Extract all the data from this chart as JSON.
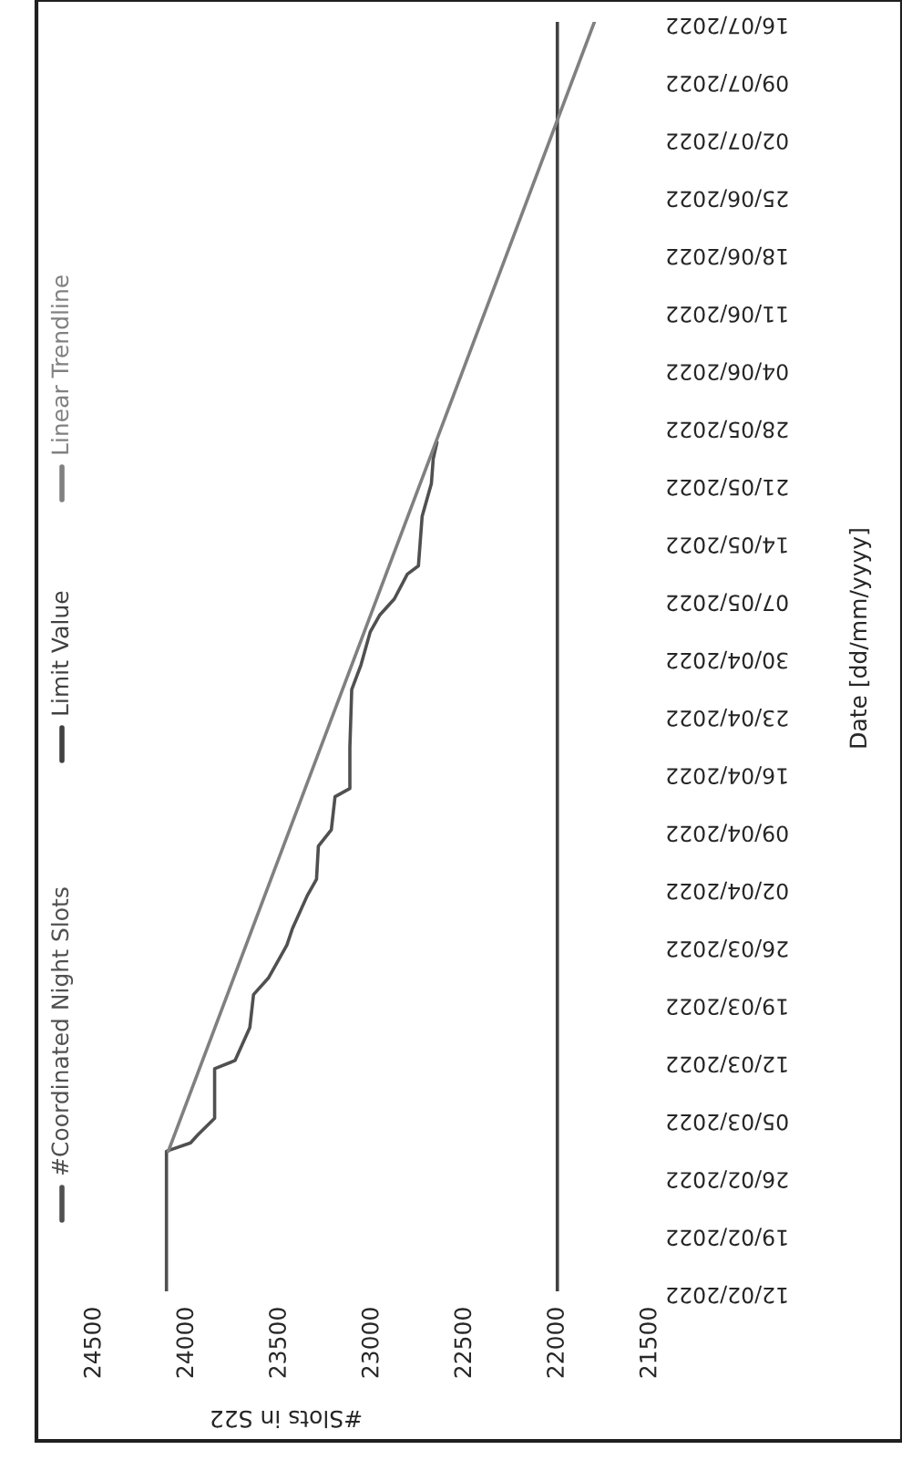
{
  "chart_data": {
    "type": "line",
    "orientation": "horizontal",
    "xlabel": "#Slots in S22",
    "ylabel": "Date [dd/mm/yyyy]",
    "xlim": [
      24500,
      21500
    ],
    "xticks": [
      24500,
      24000,
      23500,
      23000,
      22500,
      22000,
      21500
    ],
    "ylim": [
      "2022-02-12",
      "2022-07-16"
    ],
    "yticks": [
      {
        "value": "2022-02-12",
        "label": "12/02/2022"
      },
      {
        "value": "2022-02-19",
        "label": "19/02/2022"
      },
      {
        "value": "2022-02-26",
        "label": "26/02/2022"
      },
      {
        "value": "2022-03-05",
        "label": "05/03/2022"
      },
      {
        "value": "2022-03-12",
        "label": "12/03/2022"
      },
      {
        "value": "2022-03-19",
        "label": "19/03/2022"
      },
      {
        "value": "2022-03-26",
        "label": "26/03/2022"
      },
      {
        "value": "2022-04-02",
        "label": "02/04/2022"
      },
      {
        "value": "2022-04-09",
        "label": "09/04/2022"
      },
      {
        "value": "2022-04-16",
        "label": "16/04/2022"
      },
      {
        "value": "2022-04-23",
        "label": "23/04/2022"
      },
      {
        "value": "2022-04-30",
        "label": "30/04/2022"
      },
      {
        "value": "2022-05-07",
        "label": "07/05/2022"
      },
      {
        "value": "2022-05-14",
        "label": "14/05/2022"
      },
      {
        "value": "2022-05-21",
        "label": "21/05/2022"
      },
      {
        "value": "2022-05-28",
        "label": "28/05/2022"
      },
      {
        "value": "2022-06-04",
        "label": "04/06/2022"
      },
      {
        "value": "2022-06-11",
        "label": "11/06/2022"
      },
      {
        "value": "2022-06-18",
        "label": "18/06/2022"
      },
      {
        "value": "2022-06-25",
        "label": "25/06/2022"
      },
      {
        "value": "2022-07-02",
        "label": "02/07/2022"
      },
      {
        "value": "2022-07-09",
        "label": "09/07/2022"
      },
      {
        "value": "2022-07-16",
        "label": "16/07/2022"
      }
    ],
    "legend": "left",
    "grid": false,
    "series": [
      {
        "name": "#Coordinated Night Slots",
        "color": "#505050",
        "x": [
          "2022-02-12",
          "2022-03-01",
          "2022-03-02",
          "2022-03-03",
          "2022-03-05",
          "2022-03-11",
          "2022-03-12",
          "2022-03-16",
          "2022-03-20",
          "2022-03-22",
          "2022-03-26",
          "2022-03-28",
          "2022-04-01",
          "2022-04-03",
          "2022-04-07",
          "2022-04-09",
          "2022-04-13",
          "2022-04-14",
          "2022-04-19",
          "2022-04-26",
          "2022-04-29",
          "2022-05-03",
          "2022-05-05",
          "2022-05-07",
          "2022-05-10",
          "2022-05-11",
          "2022-05-17",
          "2022-05-21",
          "2022-05-24",
          "2022-05-26"
        ],
        "values": [
          24110,
          24110,
          23980,
          23940,
          23850,
          23850,
          23740,
          23660,
          23640,
          23560,
          23460,
          23430,
          23350,
          23300,
          23290,
          23220,
          23200,
          23120,
          23120,
          23110,
          23060,
          23010,
          22960,
          22880,
          22810,
          22750,
          22730,
          22680,
          22670,
          22650
        ]
      },
      {
        "name": "Limit Value",
        "color": "#404040",
        "x": [
          "2022-02-12",
          "2022-07-16"
        ],
        "values": [
          22000,
          22000
        ]
      },
      {
        "name": "Linear Trendline",
        "color": "#808080",
        "x": [
          "2022-03-01",
          "2022-07-16"
        ],
        "values": [
          24100,
          21800
        ]
      }
    ]
  }
}
